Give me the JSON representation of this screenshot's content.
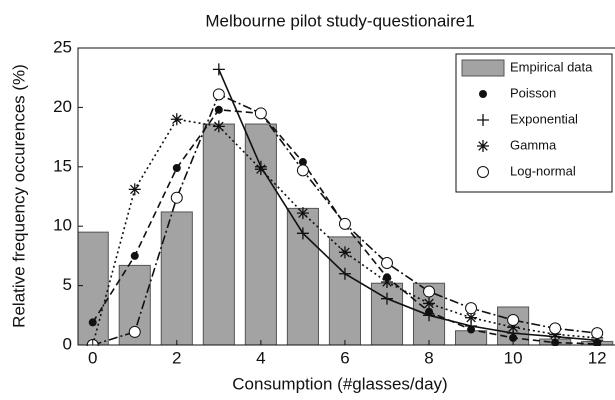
{
  "chart_data": {
    "type": "combo",
    "title": "Melbourne pilot study-questionaire1",
    "x_label": "Consumption (#glasses/day)",
    "y_label": "Relative frequency occurences (%)",
    "x": [
      0,
      1,
      2,
      3,
      4,
      5,
      6,
      7,
      8,
      9,
      10,
      11,
      12
    ],
    "xlim": [
      -0.35,
      12.4
    ],
    "xticks": [
      0,
      2,
      4,
      6,
      8,
      10,
      12
    ],
    "ylim": [
      0,
      25
    ],
    "yticks": [
      0,
      5,
      10,
      15,
      20,
      25
    ],
    "legend": "upper right",
    "series": [
      {
        "name": "Empirical data",
        "kind": "bar",
        "color": "#a3a3a3",
        "values": [
          9.5,
          6.7,
          11.2,
          18.6,
          18.6,
          11.5,
          9.1,
          5.2,
          5.2,
          1.2,
          3.2,
          0.5,
          0.3
        ]
      },
      {
        "name": "Poisson",
        "kind": "line",
        "marker": "dot",
        "line_style": "dashed",
        "color": "#111111",
        "values": [
          1.9,
          7.5,
          14.9,
          19.8,
          19.5,
          15.4,
          10.1,
          5.7,
          2.8,
          1.3,
          0.6,
          0.2,
          0.1
        ]
      },
      {
        "name": "Exponential",
        "kind": "line",
        "marker": "plus",
        "line_style": "solid",
        "color": "#111111",
        "values": [
          null,
          null,
          null,
          23.2,
          15,
          9.4,
          6.0,
          3.9,
          2.5,
          1.6,
          1.0,
          0.7,
          0.4
        ]
      },
      {
        "name": "Gamma",
        "kind": "line",
        "marker": "asterisk",
        "line_style": "dotted",
        "color": "#111111",
        "values": [
          0,
          13.1,
          19.0,
          18.4,
          14.8,
          11.1,
          7.8,
          5.3,
          3.5,
          2.3,
          1.5,
          0.9,
          0.6
        ]
      },
      {
        "name": "Log-normal",
        "kind": "line",
        "marker": "circle",
        "line_style": "dashdot",
        "color": "#111111",
        "values": [
          0,
          1.1,
          12.4,
          21.1,
          19.5,
          14.7,
          10.2,
          6.9,
          4.5,
          3.1,
          2.1,
          1.4,
          1.0
        ]
      }
    ]
  }
}
